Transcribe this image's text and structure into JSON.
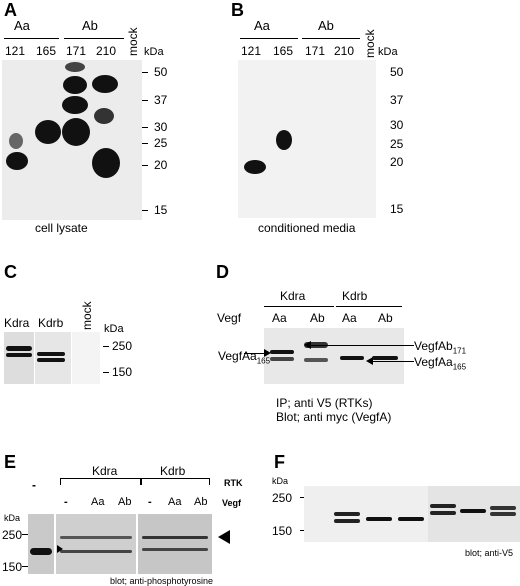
{
  "panels": {
    "A": {
      "letter": "A",
      "groups": [
        "Aa",
        "Ab"
      ],
      "lanes": [
        "121",
        "165",
        "171",
        "210"
      ],
      "mock": "mock",
      "unit": "kDa",
      "markers": [
        "50",
        "37",
        "30",
        "25",
        "20",
        "15"
      ],
      "caption": "cell lysate"
    },
    "B": {
      "letter": "B",
      "groups": [
        "Aa",
        "Ab"
      ],
      "lanes": [
        "121",
        "165",
        "171",
        "210"
      ],
      "mock": "mock",
      "unit": "kDa",
      "markers": [
        "50",
        "37",
        "30",
        "25",
        "20",
        "15"
      ],
      "caption": "conditioned media"
    },
    "C": {
      "letter": "C",
      "lanes": [
        "Kdra",
        "Kdrb",
        "mock"
      ],
      "unit": "kDa",
      "markers": [
        "250",
        "150"
      ]
    },
    "D": {
      "letter": "D",
      "groups": [
        "Kdra",
        "Kdrb"
      ],
      "row_label": "Vegf",
      "lanes": [
        "Aa",
        "Ab",
        "Aa",
        "Ab"
      ],
      "label_left_main": "VegfAa",
      "label_left_sub": "165",
      "label_right1_main": "VegfAb",
      "label_right1_sub": "171",
      "label_right2_main": "VegfAa",
      "label_right2_sub": "165",
      "caption1": "IP; anti V5 (RTKs)",
      "caption2": "Blot; anti myc (VegfA)"
    },
    "E": {
      "letter": "E",
      "groups": [
        "Kdra",
        "Kdrb"
      ],
      "rtk_label": "RTK",
      "vegf_label": "Vegf",
      "dash": "-",
      "lanes_vegf": [
        "-",
        "Aa",
        "Ab",
        "-",
        "Aa",
        "Ab"
      ],
      "unit": "kDa",
      "markers": [
        "250",
        "150"
      ],
      "caption": "blot; anti-phosphotyrosine"
    },
    "F": {
      "letter": "F",
      "unit": "kDa",
      "markers": [
        "250",
        "150"
      ],
      "caption": "blot; anti-V5"
    }
  }
}
